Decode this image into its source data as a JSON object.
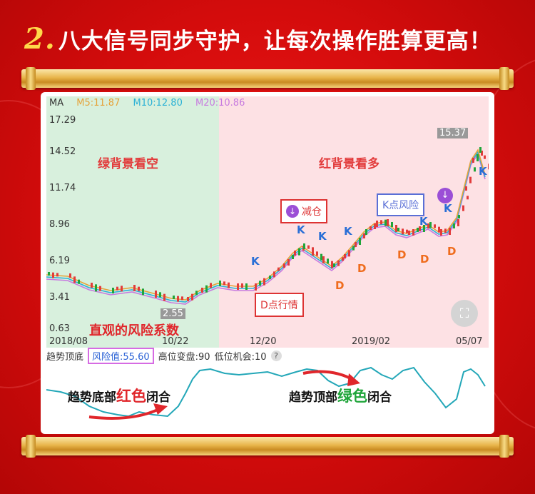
{
  "headline": {
    "number": "2.",
    "text": "八大信号同步守护，让每次操作胜算更高！"
  },
  "legend": {
    "ma": "MA",
    "m5": "M5:11.87",
    "m10": "M10:12.80",
    "m20": "M20:10.86"
  },
  "y_ticks": [
    "17.29",
    "14.52",
    "11.74",
    "8.96",
    "6.19",
    "3.41",
    "0.63"
  ],
  "x_ticks": [
    "2018/08",
    "10/22",
    "12/20",
    "2019/02",
    "05/07"
  ],
  "labels": {
    "green_bg": "绿背景看空",
    "red_bg": "红背景看多",
    "reduce": "减仓",
    "k_risk": "K点风险",
    "d_entry": "D点行情",
    "risk_coef": "直观的风险系数",
    "low_price": "2.55",
    "high_price": "15.37"
  },
  "markers": {
    "k": "K",
    "d": "D"
  },
  "indicator": {
    "title": "趋势顶底",
    "risk_value": "风险值:55.60",
    "high_change": "高位变盘:90",
    "low_chance": "低位机会:10",
    "help": "?"
  },
  "oscillator_labels": {
    "bottom_prefix": "趋势底部",
    "bottom_color": "红色",
    "bottom_suffix": "闭合",
    "top_prefix": "趋势顶部",
    "top_color": "绿色",
    "top_suffix": "闭合"
  },
  "colors": {
    "m5": "#e5a33a",
    "m10": "#2ab1d6",
    "m20": "#c77adf",
    "up": "#e23b3b",
    "down": "#1fa53a"
  }
}
